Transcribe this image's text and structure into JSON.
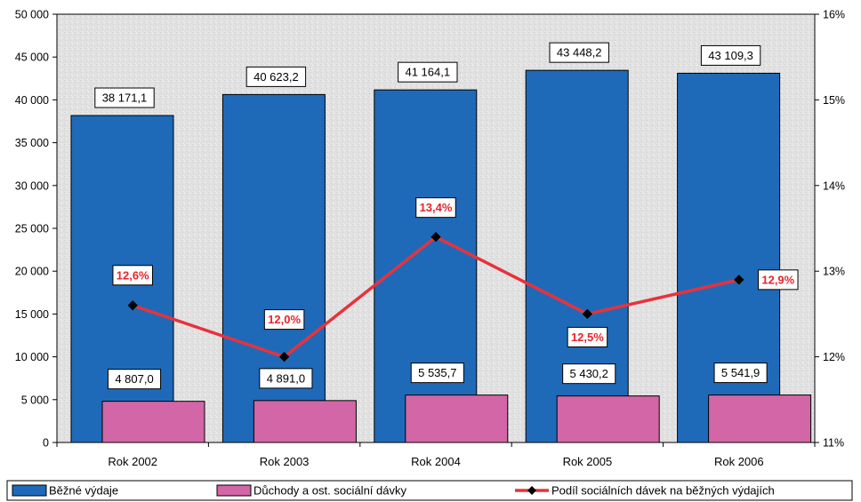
{
  "chart_data": {
    "type": "bar",
    "categories": [
      "Rok 2002",
      "Rok 2003",
      "Rok 2004",
      "Rok 2005",
      "Rok 2006"
    ],
    "series": [
      {
        "name": "Běžné výdaje",
        "type": "bar",
        "axis": "left",
        "color": "#1f6ab8",
        "values": [
          38171.1,
          40623.2,
          41164.1,
          43448.2,
          43109.3
        ],
        "labels": [
          "38 171,1",
          "40 623,2",
          "41 164,1",
          "43 448,2",
          "43 109,3"
        ]
      },
      {
        "name": "Důchody a ost. sociální dávky",
        "type": "bar",
        "axis": "left",
        "color": "#d266a6",
        "values": [
          4807.0,
          4891.0,
          5535.7,
          5430.2,
          5541.9
        ],
        "labels": [
          "4 807,0",
          "4 891,0",
          "5 535,7",
          "5 430,2",
          "5 541,9"
        ]
      },
      {
        "name": "Podíl sociálních dávek na běžných výdajích",
        "type": "line",
        "axis": "right",
        "color": "#e8323c",
        "values": [
          12.6,
          12.0,
          13.4,
          12.5,
          12.9
        ],
        "labels": [
          "12,6%",
          "12,0%",
          "13,4%",
          "12,5%",
          "12,9%"
        ]
      }
    ],
    "y_left": {
      "min": 0,
      "max": 50000,
      "ticks": [
        0,
        5000,
        10000,
        15000,
        20000,
        25000,
        30000,
        35000,
        40000,
        45000,
        50000
      ],
      "tick_labels": [
        "0",
        "5 000",
        "10 000",
        "15 000",
        "20 000",
        "25 000",
        "30 000",
        "35 000",
        "40 000",
        "45 000",
        "50 000"
      ]
    },
    "y_right": {
      "min": 11,
      "max": 16,
      "ticks": [
        11,
        12,
        13,
        14,
        15,
        16
      ],
      "tick_labels": [
        "11%",
        "12%",
        "13%",
        "14%",
        "15%",
        "16%"
      ]
    },
    "title": "",
    "xlabel": "",
    "ylabel": "",
    "grid": false,
    "legend_position": "bottom"
  }
}
